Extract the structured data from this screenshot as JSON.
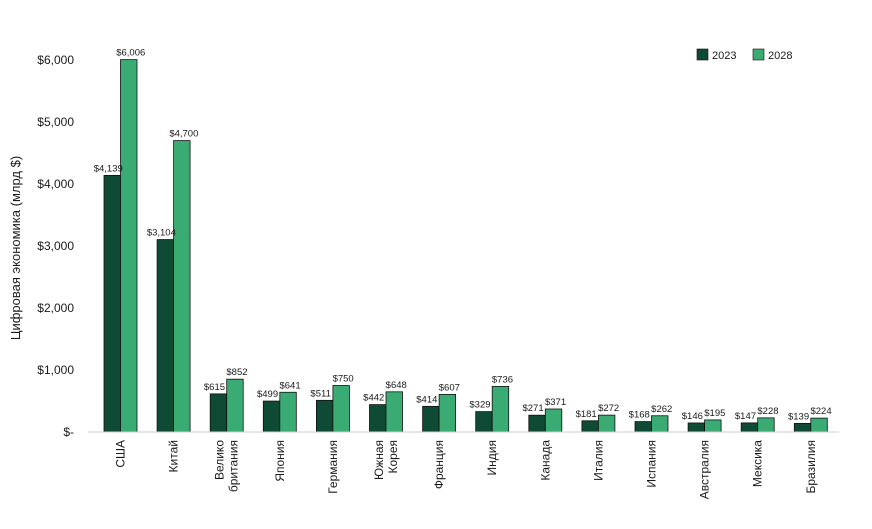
{
  "chart_data": {
    "type": "bar",
    "ylabel": "Цифровая экономика (млрд $)",
    "xlabel": "",
    "ylim": [
      0,
      6000
    ],
    "y_ticks": [
      {
        "value": 0,
        "label": "$-"
      },
      {
        "value": 1000,
        "label": "$1,000"
      },
      {
        "value": 2000,
        "label": "$2,000"
      },
      {
        "value": 3000,
        "label": "$3,000"
      },
      {
        "value": 4000,
        "label": "$4,000"
      },
      {
        "value": 5000,
        "label": "$5,000"
      },
      {
        "value": 6000,
        "label": "$6,000"
      }
    ],
    "grid": false,
    "legend_position": "top-right",
    "categories": [
      [
        "США"
      ],
      [
        "Китай"
      ],
      [
        "Велико",
        "британия"
      ],
      [
        "Япония"
      ],
      [
        "Германия"
      ],
      [
        "Южная",
        "Корея"
      ],
      [
        "Франция"
      ],
      [
        "Индия"
      ],
      [
        "Канада"
      ],
      [
        "Италия"
      ],
      [
        "Испания"
      ],
      [
        "Австралия"
      ],
      [
        "Мексика"
      ],
      [
        "Бразилия"
      ]
    ],
    "series": [
      {
        "name": "2023",
        "color": "#0f4a34",
        "values": [
          4139,
          3104,
          615,
          499,
          511,
          442,
          414,
          329,
          271,
          181,
          168,
          146,
          147,
          139
        ],
        "labels": [
          "$4,139",
          "$3,104",
          "$615",
          "$499",
          "$511",
          "$442",
          "$414",
          "$329",
          "$271",
          "$181",
          "$168",
          "$146",
          "$147",
          "$139"
        ]
      },
      {
        "name": "2028",
        "color": "#3aab73",
        "values": [
          6006,
          4700,
          852,
          641,
          750,
          648,
          607,
          736,
          371,
          272,
          262,
          195,
          228,
          224
        ],
        "labels": [
          "$6,006",
          "$4,700",
          "$852",
          "$641",
          "$750",
          "$648",
          "$607",
          "$736",
          "$371",
          "$272",
          "$262",
          "$195",
          "$228",
          "$224"
        ]
      }
    ]
  }
}
